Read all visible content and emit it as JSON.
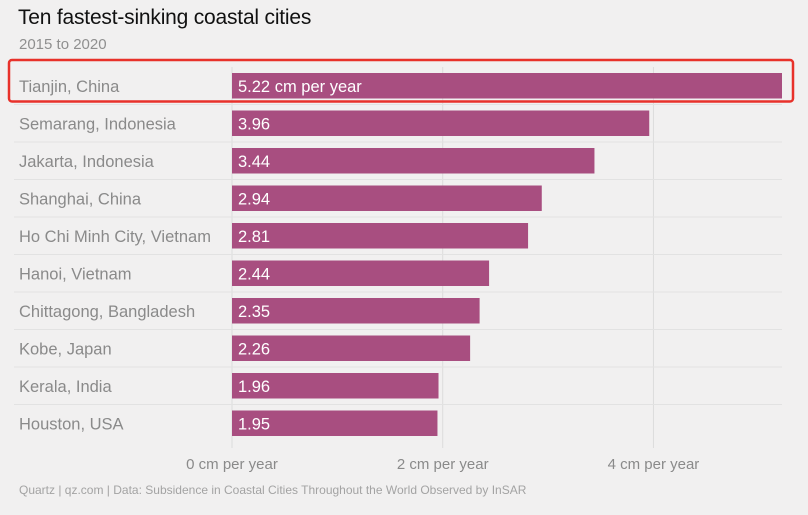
{
  "title": "Ten fastest-sinking coastal cities",
  "subtitle": "2015 to 2020",
  "footer": "Quartz | qz.com | Data: Subsidence in Coastal Cities Throughout the World Observed by InSAR",
  "colors": {
    "bar": "#a84e80",
    "highlight_box": "#e8312a",
    "row_divider": "#e2e2e2",
    "grid": "#dcdcdc"
  },
  "chart_data": {
    "type": "bar",
    "orientation": "horizontal",
    "categories": [
      "Tianjin, China",
      "Semarang, Indonesia",
      "Jakarta, Indonesia",
      "Shanghai, China",
      "Ho Chi Minh City, Vietnam",
      "Hanoi, Vietnam",
      "Chittagong, Bangladesh",
      "Kobe, Japan",
      "Kerala, India",
      "Houston, USA"
    ],
    "values": [
      5.22,
      3.96,
      3.44,
      2.94,
      2.81,
      2.44,
      2.35,
      2.26,
      1.96,
      1.95
    ],
    "value_labels": [
      "5.22 cm per year",
      "3.96",
      "3.44",
      "2.94",
      "2.81",
      "2.44",
      "2.35",
      "2.26",
      "1.96",
      "1.95"
    ],
    "x_ticks": [
      0,
      2,
      4
    ],
    "x_tick_labels": [
      "0 cm per year",
      "2 cm per year",
      "4 cm per year"
    ],
    "xlim": [
      0,
      5.22
    ],
    "grid": true,
    "highlighted_category": "Tianjin, China"
  }
}
